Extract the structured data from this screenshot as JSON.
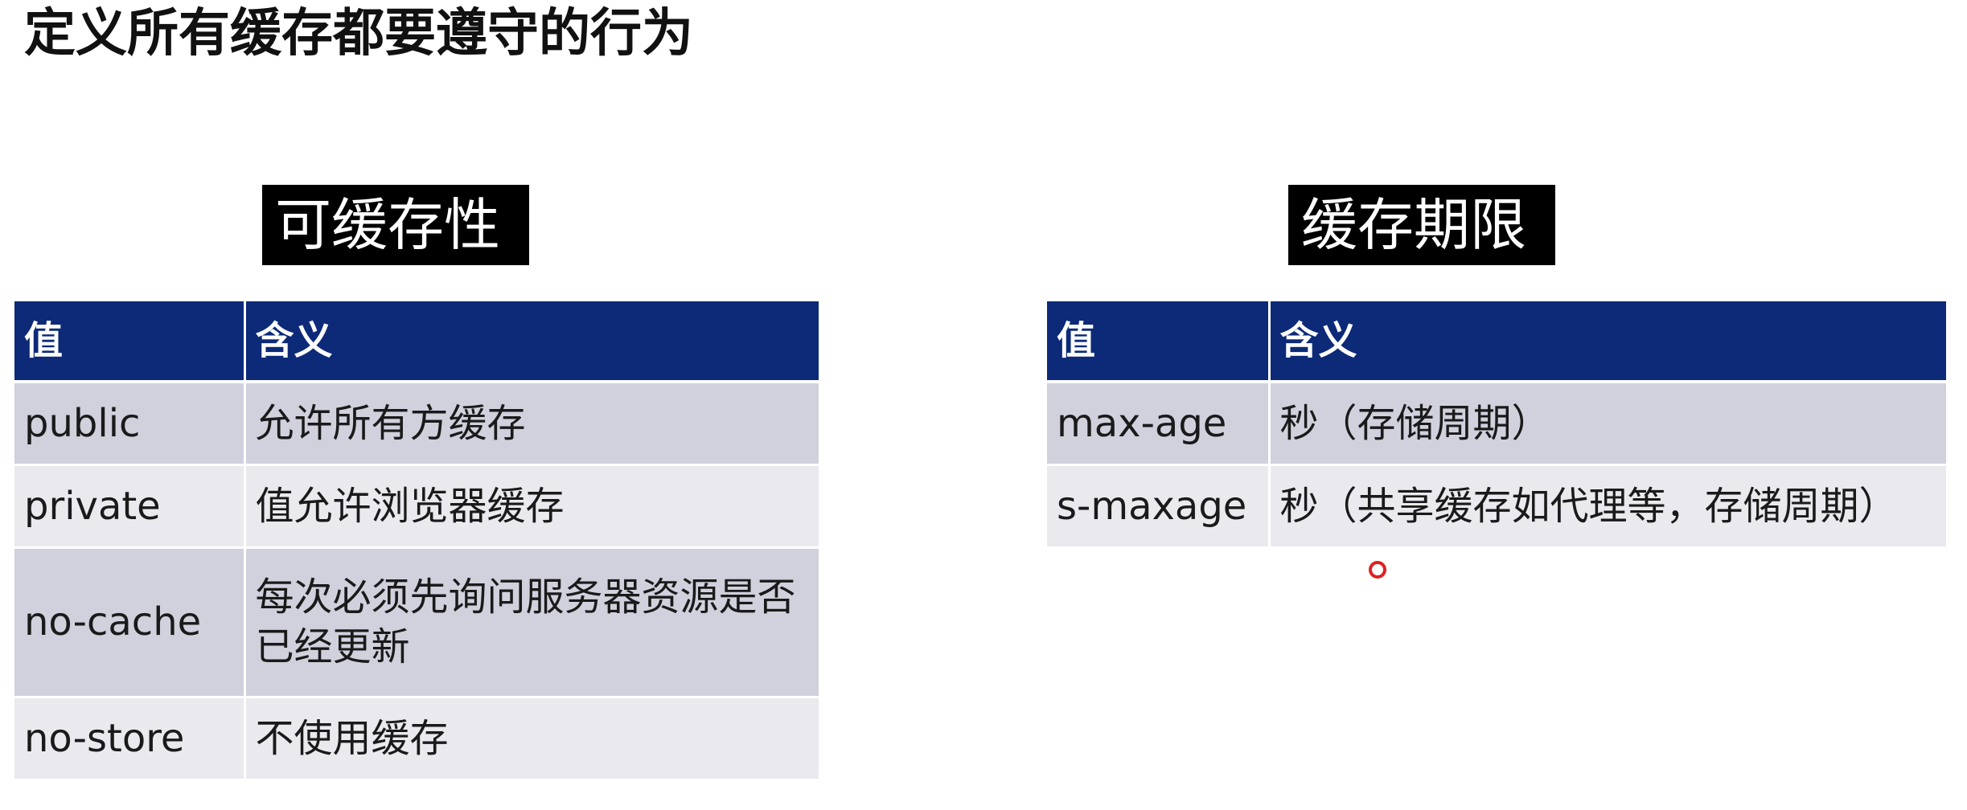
{
  "title": "定义所有缓存都要遵守的行为",
  "cacheability": {
    "heading": "可缓存性",
    "columns": [
      "值",
      "含义"
    ],
    "rows": [
      {
        "value": "public",
        "meaning": "允许所有方缓存"
      },
      {
        "value": "private",
        "meaning": "值允许浏览器缓存"
      },
      {
        "value": "no-cache",
        "meaning": "每次必须先询问服务器资源是否已经更新"
      },
      {
        "value": "no-store",
        "meaning": "不使用缓存"
      }
    ]
  },
  "expiration": {
    "heading": "缓存期限",
    "columns": [
      "值",
      "含义"
    ],
    "rows": [
      {
        "value": "max-age",
        "meaning": "秒（存储周期）"
      },
      {
        "value": "s-maxage",
        "meaning": "秒（共享缓存如代理等，存储周期）"
      }
    ]
  },
  "colors": {
    "header_bg": "#0d2a78",
    "row_odd": "#d0d1dd",
    "row_even": "#e9e9ee",
    "cursor": "#e02020"
  }
}
